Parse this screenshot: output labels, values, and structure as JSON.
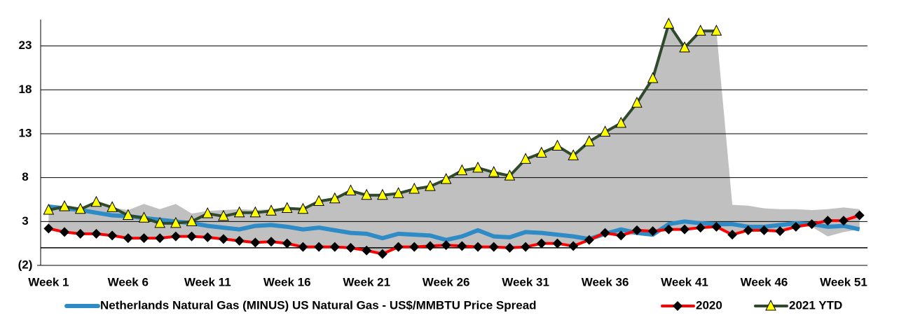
{
  "chart_data": {
    "type": "line",
    "categories": [
      "Week 1",
      null,
      null,
      null,
      null,
      "Week 6",
      null,
      null,
      null,
      null,
      "Week 11",
      null,
      null,
      null,
      null,
      "Week 16",
      null,
      null,
      null,
      null,
      "Week 21",
      null,
      null,
      null,
      null,
      "Week 26",
      null,
      null,
      null,
      null,
      "Week 31",
      null,
      null,
      null,
      null,
      "Week 36",
      null,
      null,
      null,
      null,
      "Week 41",
      null,
      null,
      null,
      null,
      "Week 46",
      null,
      null,
      null,
      null,
      "Week 51",
      null
    ],
    "band": {
      "color": "#c0c0c0",
      "high": [
        4.7,
        4.7,
        4.6,
        5.2,
        4.6,
        4.3,
        5.0,
        4.4,
        5.0,
        3.9,
        4.2,
        4.3,
        4.4,
        4.3,
        4.4,
        4.5,
        4.5,
        5.3,
        5.6,
        6.5,
        6.0,
        6.0,
        6.2,
        6.7,
        7.0,
        7.8,
        8.8,
        9.1,
        8.6,
        8.2,
        10.1,
        10.8,
        11.6,
        10.5,
        12.1,
        13.2,
        14.2,
        16.5,
        19.3,
        25.5,
        22.8,
        24.7,
        24.7,
        4.9,
        4.8,
        4.5,
        4.4,
        4.4,
        4.3,
        4.4,
        4.6,
        4.4
      ],
      "low": [
        2.2,
        1.8,
        1.6,
        1.6,
        1.4,
        1.1,
        1.1,
        1.1,
        1.3,
        1.3,
        1.2,
        1.0,
        0.8,
        0.6,
        0.7,
        0.5,
        0.1,
        0.1,
        0.1,
        0,
        -0.3,
        -0.7,
        0.1,
        0.1,
        0.2,
        0.3,
        0.2,
        0.1,
        0.1,
        0,
        0.1,
        0.5,
        0.5,
        0.2,
        0.9,
        1.4,
        1.4,
        1.5,
        1.5,
        2.1,
        2.1,
        2.3,
        2.4,
        1.5,
        2.0,
        2.0,
        1.9,
        2.4,
        2.4,
        1.3,
        1.8,
        2.1
      ]
    },
    "series": [
      {
        "name": "Netherlands Natural Gas (MINUS) US Natural Gas - US$/MMBTU Price Spread",
        "color": "#2e8bc6",
        "marker": "none",
        "values": [
          4.7,
          4.5,
          4.3,
          4.0,
          3.7,
          3.6,
          3.4,
          3.2,
          3.0,
          2.8,
          2.5,
          2.3,
          2.1,
          2.5,
          2.6,
          2.4,
          2.1,
          2.3,
          2.0,
          1.7,
          1.6,
          1.1,
          1.6,
          1.5,
          1.4,
          0.9,
          1.3,
          2.0,
          1.3,
          1.2,
          1.8,
          1.7,
          1.5,
          1.3,
          1.0,
          1.6,
          2.1,
          1.7,
          1.5,
          2.7,
          3.0,
          2.8,
          2.7,
          2.7,
          2.4,
          2.4,
          2.6,
          2.8,
          2.7,
          2.4,
          2.5,
          2.1
        ]
      },
      {
        "name": "2020",
        "color": "#ff0000",
        "marker": "diamond",
        "marker_color": "#000000",
        "values": [
          2.2,
          1.8,
          1.6,
          1.6,
          1.4,
          1.1,
          1.1,
          1.1,
          1.3,
          1.3,
          1.2,
          1.0,
          0.8,
          0.6,
          0.7,
          0.5,
          0.1,
          0.1,
          0.1,
          0,
          -0.3,
          -0.7,
          0.1,
          0.1,
          0.2,
          0.3,
          0.2,
          0.1,
          0.1,
          0,
          0.1,
          0.5,
          0.5,
          0.2,
          0.9,
          1.7,
          1.4,
          2.0,
          1.9,
          2.1,
          2.1,
          2.3,
          2.4,
          1.5,
          2.0,
          2.0,
          1.9,
          2.4,
          2.7,
          3.1,
          3.1,
          3.7
        ]
      },
      {
        "name": "2021 YTD",
        "color": "#2f4a2a",
        "marker": "triangle",
        "marker_color": "#ffff00",
        "values": [
          4.3,
          4.7,
          4.4,
          5.2,
          4.6,
          3.7,
          3.4,
          2.8,
          2.8,
          3.0,
          3.9,
          3.6,
          4.0,
          4.0,
          4.2,
          4.5,
          4.4,
          5.3,
          5.6,
          6.5,
          6.0,
          6.0,
          6.2,
          6.7,
          7.0,
          7.8,
          8.8,
          9.1,
          8.6,
          8.2,
          10.1,
          10.8,
          11.6,
          10.5,
          12.1,
          13.2,
          14.2,
          16.5,
          19.3,
          25.5,
          22.8,
          24.7,
          24.7,
          null,
          null,
          null,
          null,
          null,
          null,
          null,
          null,
          null
        ]
      }
    ],
    "ylim": [
      -2,
      26
    ],
    "yticks": [
      {
        "value": -2,
        "label": "(2)"
      },
      3,
      8,
      13,
      18,
      23
    ],
    "grid": true,
    "legend": "bottom"
  }
}
